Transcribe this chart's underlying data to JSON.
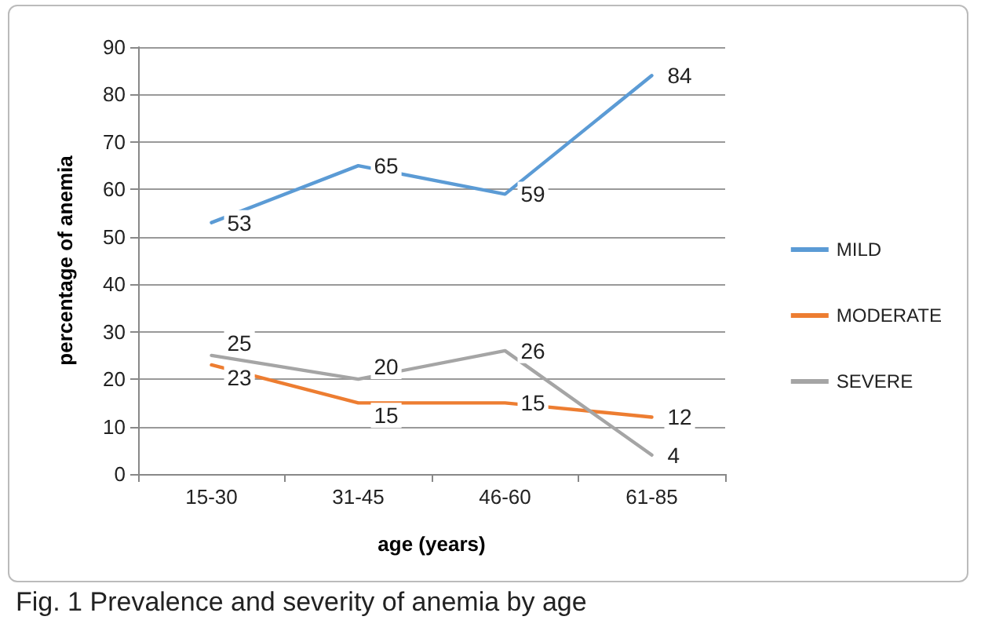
{
  "chart_data": {
    "type": "line",
    "categories": [
      "15-30",
      "31-45",
      "46-60",
      "61-85"
    ],
    "series": [
      {
        "name": "MILD",
        "color": "#5b9bd5",
        "values": [
          53,
          65,
          59,
          84
        ]
      },
      {
        "name": "MODERATE",
        "color": "#ed7d31",
        "values": [
          23,
          15,
          15,
          12
        ]
      },
      {
        "name": "SEVERE",
        "color": "#a5a5a5",
        "values": [
          25,
          20,
          26,
          4
        ]
      }
    ],
    "xlabel": "age (years)",
    "ylabel": "percentage of anemia",
    "ylim": [
      0,
      90
    ],
    "yticks": [
      0,
      10,
      20,
      30,
      40,
      50,
      60,
      70,
      80,
      90
    ],
    "grid": "y",
    "legend": "right",
    "data_labels": true,
    "marker": "none",
    "line_style": "solid",
    "annotations": [
      "Fig. 1 Prevalence and severity of anemia by age"
    ]
  }
}
